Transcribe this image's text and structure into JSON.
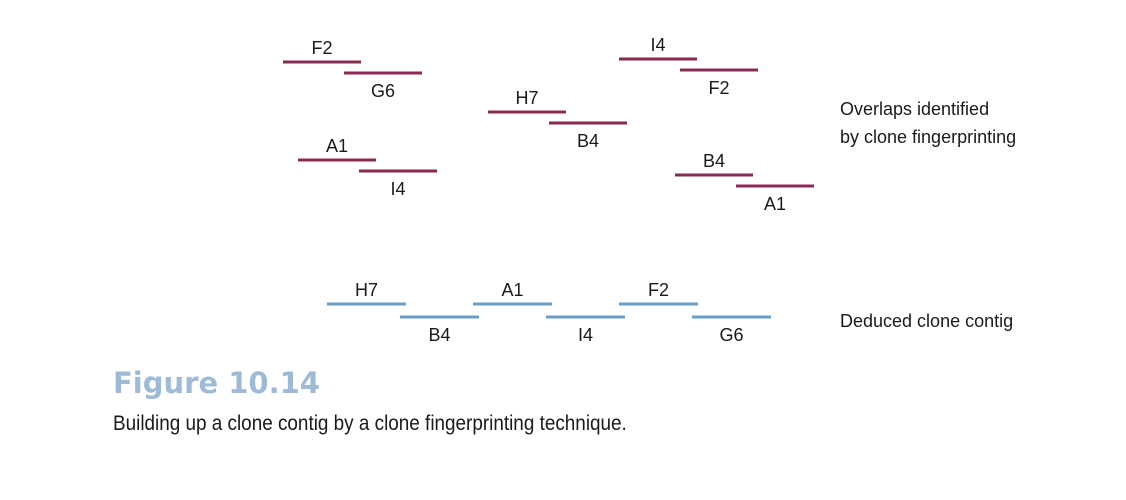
{
  "colors": {
    "overlap": "#8a2a52",
    "contig": "#6b9ec8",
    "figure_number": "#9dbbd6"
  },
  "overlaps": {
    "label": "Overlaps identified\nby clone fingerprinting",
    "pairs": [
      {
        "first": "F2",
        "second": "G6"
      },
      {
        "first": "A1",
        "second": "I4"
      },
      {
        "first": "H7",
        "second": "B4"
      },
      {
        "first": "I4",
        "second": "F2"
      },
      {
        "first": "B4",
        "second": "A1"
      }
    ]
  },
  "contig": {
    "label": "Deduced clone contig",
    "clones": [
      "H7",
      "B4",
      "A1",
      "I4",
      "F2",
      "G6"
    ]
  },
  "figure": {
    "number": "Figure 10.14",
    "caption": "Building up a clone contig by a clone fingerprinting technique."
  }
}
